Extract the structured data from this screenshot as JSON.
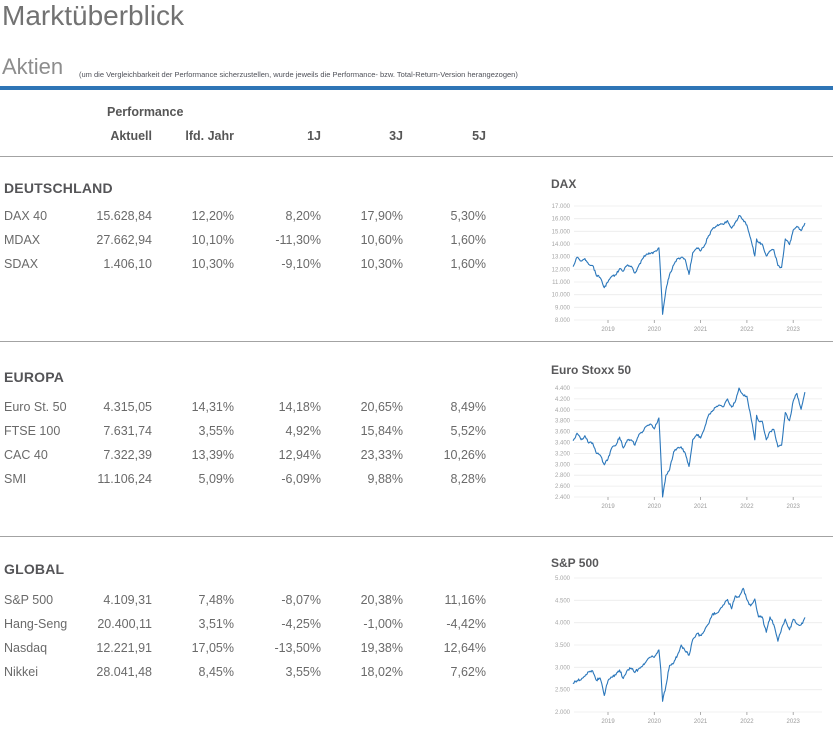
{
  "page": {
    "title": "Marktüberblick"
  },
  "aktien": {
    "title": "Aktien",
    "note": "(um die Vergleichbarkeit der Performance sicherzustellen, wurde jeweils die Performance- bzw. Total-Return-Version herangezogen)"
  },
  "table_header": {
    "group": "Performance",
    "columns": [
      "Aktuell",
      "lfd. Jahr",
      "1J",
      "3J",
      "5J"
    ]
  },
  "colors": {
    "accent_blue": "#2e75b6",
    "chart_line": "#2b77bb",
    "heading_gray": "#545457",
    "text_gray": "#6a6a6a",
    "axis_gray": "#a3a3a3"
  },
  "sections": [
    {
      "heading": "DEUTSCHLAND",
      "rows": [
        {
          "name": "DAX 40",
          "aktuell": "15.628,84",
          "lfd": "12,20%",
          "j1": "8,20%",
          "j3": "17,90%",
          "j5": "5,30%"
        },
        {
          "name": "MDAX",
          "aktuell": "27.662,94",
          "lfd": "10,10%",
          "j1": "-11,30%",
          "j3": "10,60%",
          "j5": "1,60%"
        },
        {
          "name": "SDAX",
          "aktuell": "1.406,10",
          "lfd": "10,30%",
          "j1": "-9,10%",
          "j3": "10,30%",
          "j5": "1,60%"
        }
      ]
    },
    {
      "heading": "EUROPA",
      "rows": [
        {
          "name": "Euro St. 50",
          "aktuell": "4.315,05",
          "lfd": "14,31%",
          "j1": "14,18%",
          "j3": "20,65%",
          "j5": "8,49%"
        },
        {
          "name": "FTSE 100",
          "aktuell": "7.631,74",
          "lfd": "3,55%",
          "j1": "4,92%",
          "j3": "15,84%",
          "j5": "5,52%"
        },
        {
          "name": "CAC 40",
          "aktuell": "7.322,39",
          "lfd": "13,39%",
          "j1": "12,94%",
          "j3": "23,33%",
          "j5": "10,26%"
        },
        {
          "name": "SMI",
          "aktuell": "11.106,24",
          "lfd": "5,09%",
          "j1": "-6,09%",
          "j3": "9,88%",
          "j5": "8,28%"
        }
      ]
    },
    {
      "heading": "GLOBAL",
      "rows": [
        {
          "name": "S&P 500",
          "aktuell": "4.109,31",
          "lfd": "7,48%",
          "j1": "-8,07%",
          "j3": "20,38%",
          "j5": "11,16%"
        },
        {
          "name": "Hang-Seng",
          "aktuell": "20.400,11",
          "lfd": "3,51%",
          "j1": "-4,25%",
          "j3": "-1,00%",
          "j5": "-4,42%"
        },
        {
          "name": "Nasdaq",
          "aktuell": "12.221,91",
          "lfd": "17,05%",
          "j1": "-13,50%",
          "j3": "19,38%",
          "j5": "12,64%"
        },
        {
          "name": "Nikkei",
          "aktuell": "28.041,48",
          "lfd": "8,45%",
          "j1": "3,55%",
          "j3": "18,02%",
          "j5": "7,62%"
        }
      ]
    }
  ],
  "chart_data": [
    {
      "type": "line",
      "title": "DAX",
      "line_color": "#2b77bb",
      "xlim": [
        2018.25,
        2023.3
      ],
      "ylim": [
        8000,
        17000
      ],
      "x_ticks": [
        "2019",
        "2020",
        "2021",
        "2022",
        "2023"
      ],
      "y_ticks": [
        17000,
        16000,
        15000,
        14000,
        13000,
        12000,
        11000,
        10000,
        9000,
        8000
      ],
      "y_tick_labels": [
        "17.000",
        "16.000",
        "15.000",
        "14.000",
        "13.000",
        "12.000",
        "11.000",
        "10.000",
        "9.000",
        "8.000"
      ],
      "x_unit": "year",
      "points": [
        [
          2018.25,
          12250
        ],
        [
          2018.33,
          12950
        ],
        [
          2018.42,
          12650
        ],
        [
          2018.5,
          12850
        ],
        [
          2018.58,
          12400
        ],
        [
          2018.67,
          12300
        ],
        [
          2018.75,
          11500
        ],
        [
          2018.83,
          11350
        ],
        [
          2018.92,
          10550
        ],
        [
          2019.0,
          11000
        ],
        [
          2019.08,
          11450
        ],
        [
          2019.17,
          11550
        ],
        [
          2019.25,
          12050
        ],
        [
          2019.33,
          11850
        ],
        [
          2019.42,
          12350
        ],
        [
          2019.5,
          12250
        ],
        [
          2019.58,
          11700
        ],
        [
          2019.67,
          12350
        ],
        [
          2019.75,
          12850
        ],
        [
          2019.83,
          13200
        ],
        [
          2019.92,
          13250
        ],
        [
          2020.0,
          13400
        ],
        [
          2020.1,
          13700
        ],
        [
          2020.13,
          12000
        ],
        [
          2020.18,
          8450
        ],
        [
          2020.25,
          10350
        ],
        [
          2020.33,
          11600
        ],
        [
          2020.42,
          12350
        ],
        [
          2020.5,
          12850
        ],
        [
          2020.58,
          12950
        ],
        [
          2020.67,
          12750
        ],
        [
          2020.75,
          11600
        ],
        [
          2020.83,
          13300
        ],
        [
          2020.92,
          13700
        ],
        [
          2021.0,
          13450
        ],
        [
          2021.08,
          13850
        ],
        [
          2021.17,
          14650
        ],
        [
          2021.25,
          15150
        ],
        [
          2021.33,
          15400
        ],
        [
          2021.42,
          15550
        ],
        [
          2021.5,
          15550
        ],
        [
          2021.58,
          15850
        ],
        [
          2021.67,
          15250
        ],
        [
          2021.75,
          15700
        ],
        [
          2021.83,
          16250
        ],
        [
          2021.92,
          15900
        ],
        [
          2022.0,
          15500
        ],
        [
          2022.08,
          14450
        ],
        [
          2022.17,
          13050
        ],
        [
          2022.21,
          14400
        ],
        [
          2022.25,
          14150
        ],
        [
          2022.33,
          14000
        ],
        [
          2022.42,
          13050
        ],
        [
          2022.5,
          13450
        ],
        [
          2022.58,
          13550
        ],
        [
          2022.67,
          12300
        ],
        [
          2022.75,
          12150
        ],
        [
          2022.83,
          14400
        ],
        [
          2022.92,
          13950
        ],
        [
          2023.0,
          15100
        ],
        [
          2023.08,
          15400
        ],
        [
          2023.17,
          15050
        ],
        [
          2023.25,
          15630
        ]
      ]
    },
    {
      "type": "line",
      "title": "Euro Stoxx 50",
      "line_color": "#2b77bb",
      "xlim": [
        2018.25,
        2023.3
      ],
      "ylim": [
        2400,
        4400
      ],
      "x_ticks": [
        "2019",
        "2020",
        "2021",
        "2022",
        "2023"
      ],
      "y_ticks": [
        4400,
        4200,
        4000,
        3800,
        3600,
        3400,
        3200,
        3000,
        2800,
        2600,
        2400
      ],
      "y_tick_labels": [
        "4.400",
        "4.200",
        "4.000",
        "3.800",
        "3.600",
        "3.400",
        "3.200",
        "3.000",
        "2.800",
        "2.600",
        "2.400"
      ],
      "x_unit": "year",
      "points": [
        [
          2018.25,
          3440
        ],
        [
          2018.33,
          3570
        ],
        [
          2018.42,
          3450
        ],
        [
          2018.5,
          3525
        ],
        [
          2018.58,
          3390
        ],
        [
          2018.67,
          3390
        ],
        [
          2018.75,
          3200
        ],
        [
          2018.83,
          3170
        ],
        [
          2018.92,
          2990
        ],
        [
          2019.0,
          3100
        ],
        [
          2019.08,
          3300
        ],
        [
          2019.17,
          3350
        ],
        [
          2019.25,
          3500
        ],
        [
          2019.33,
          3300
        ],
        [
          2019.42,
          3450
        ],
        [
          2019.5,
          3450
        ],
        [
          2019.58,
          3350
        ],
        [
          2019.67,
          3550
        ],
        [
          2019.75,
          3600
        ],
        [
          2019.83,
          3700
        ],
        [
          2019.92,
          3740
        ],
        [
          2020.0,
          3650
        ],
        [
          2020.1,
          3850
        ],
        [
          2020.13,
          3350
        ],
        [
          2020.18,
          2390
        ],
        [
          2020.25,
          2800
        ],
        [
          2020.33,
          2900
        ],
        [
          2020.42,
          3230
        ],
        [
          2020.5,
          3300
        ],
        [
          2020.58,
          3320
        ],
        [
          2020.67,
          3200
        ],
        [
          2020.75,
          2960
        ],
        [
          2020.83,
          3450
        ],
        [
          2020.92,
          3550
        ],
        [
          2021.0,
          3480
        ],
        [
          2021.08,
          3650
        ],
        [
          2021.17,
          3900
        ],
        [
          2021.25,
          3970
        ],
        [
          2021.33,
          4050
        ],
        [
          2021.42,
          4080
        ],
        [
          2021.5,
          4060
        ],
        [
          2021.58,
          4200
        ],
        [
          2021.67,
          4050
        ],
        [
          2021.75,
          4150
        ],
        [
          2021.83,
          4400
        ],
        [
          2021.92,
          4270
        ],
        [
          2022.0,
          4250
        ],
        [
          2022.08,
          3900
        ],
        [
          2022.17,
          3450
        ],
        [
          2022.21,
          3900
        ],
        [
          2022.25,
          3800
        ],
        [
          2022.33,
          3790
        ],
        [
          2022.42,
          3450
        ],
        [
          2022.5,
          3600
        ],
        [
          2022.58,
          3640
        ],
        [
          2022.67,
          3320
        ],
        [
          2022.75,
          3350
        ],
        [
          2022.83,
          3950
        ],
        [
          2022.92,
          3800
        ],
        [
          2023.0,
          4160
        ],
        [
          2023.08,
          4300
        ],
        [
          2023.17,
          4010
        ],
        [
          2023.25,
          4315
        ]
      ]
    },
    {
      "type": "line",
      "title": "S&P 500",
      "line_color": "#2b77bb",
      "xlim": [
        2018.25,
        2023.3
      ],
      "ylim": [
        2000,
        5000
      ],
      "x_ticks": [
        "2019",
        "2020",
        "2021",
        "2022",
        "2023"
      ],
      "y_ticks": [
        5000,
        4500,
        4000,
        3500,
        3000,
        2500,
        2000
      ],
      "y_tick_labels": [
        "5.000",
        "4.500",
        "4.000",
        "3.500",
        "3.000",
        "2.500",
        "2.000"
      ],
      "x_unit": "year",
      "points": [
        [
          2018.25,
          2640
        ],
        [
          2018.33,
          2700
        ],
        [
          2018.42,
          2720
        ],
        [
          2018.5,
          2800
        ],
        [
          2018.58,
          2900
        ],
        [
          2018.67,
          2915
        ],
        [
          2018.75,
          2710
        ],
        [
          2018.83,
          2760
        ],
        [
          2018.92,
          2370
        ],
        [
          2019.0,
          2700
        ],
        [
          2019.08,
          2780
        ],
        [
          2019.17,
          2830
        ],
        [
          2019.25,
          2940
        ],
        [
          2019.33,
          2750
        ],
        [
          2019.42,
          2940
        ],
        [
          2019.5,
          2980
        ],
        [
          2019.58,
          2885
        ],
        [
          2019.67,
          2975
        ],
        [
          2019.75,
          3035
        ],
        [
          2019.83,
          3140
        ],
        [
          2019.92,
          3230
        ],
        [
          2020.0,
          3225
        ],
        [
          2020.1,
          3390
        ],
        [
          2020.14,
          2950
        ],
        [
          2020.18,
          2240
        ],
        [
          2020.25,
          2585
        ],
        [
          2020.33,
          3040
        ],
        [
          2020.42,
          3100
        ],
        [
          2020.5,
          3270
        ],
        [
          2020.58,
          3500
        ],
        [
          2020.67,
          3360
        ],
        [
          2020.75,
          3270
        ],
        [
          2020.83,
          3620
        ],
        [
          2020.92,
          3755
        ],
        [
          2021.0,
          3715
        ],
        [
          2021.08,
          3810
        ],
        [
          2021.17,
          3970
        ],
        [
          2021.25,
          4180
        ],
        [
          2021.33,
          4200
        ],
        [
          2021.42,
          4300
        ],
        [
          2021.5,
          4400
        ],
        [
          2021.58,
          4520
        ],
        [
          2021.67,
          4310
        ],
        [
          2021.75,
          4600
        ],
        [
          2021.83,
          4570
        ],
        [
          2021.92,
          4770
        ],
        [
          2022.0,
          4515
        ],
        [
          2022.08,
          4375
        ],
        [
          2022.17,
          4530
        ],
        [
          2022.25,
          4130
        ],
        [
          2022.33,
          4130
        ],
        [
          2022.42,
          3785
        ],
        [
          2022.5,
          4130
        ],
        [
          2022.58,
          3955
        ],
        [
          2022.67,
          3585
        ],
        [
          2022.75,
          3870
        ],
        [
          2022.83,
          4080
        ],
        [
          2022.92,
          3840
        ],
        [
          2023.0,
          4075
        ],
        [
          2023.08,
          3970
        ],
        [
          2023.17,
          3950
        ],
        [
          2023.25,
          4109
        ]
      ]
    }
  ]
}
